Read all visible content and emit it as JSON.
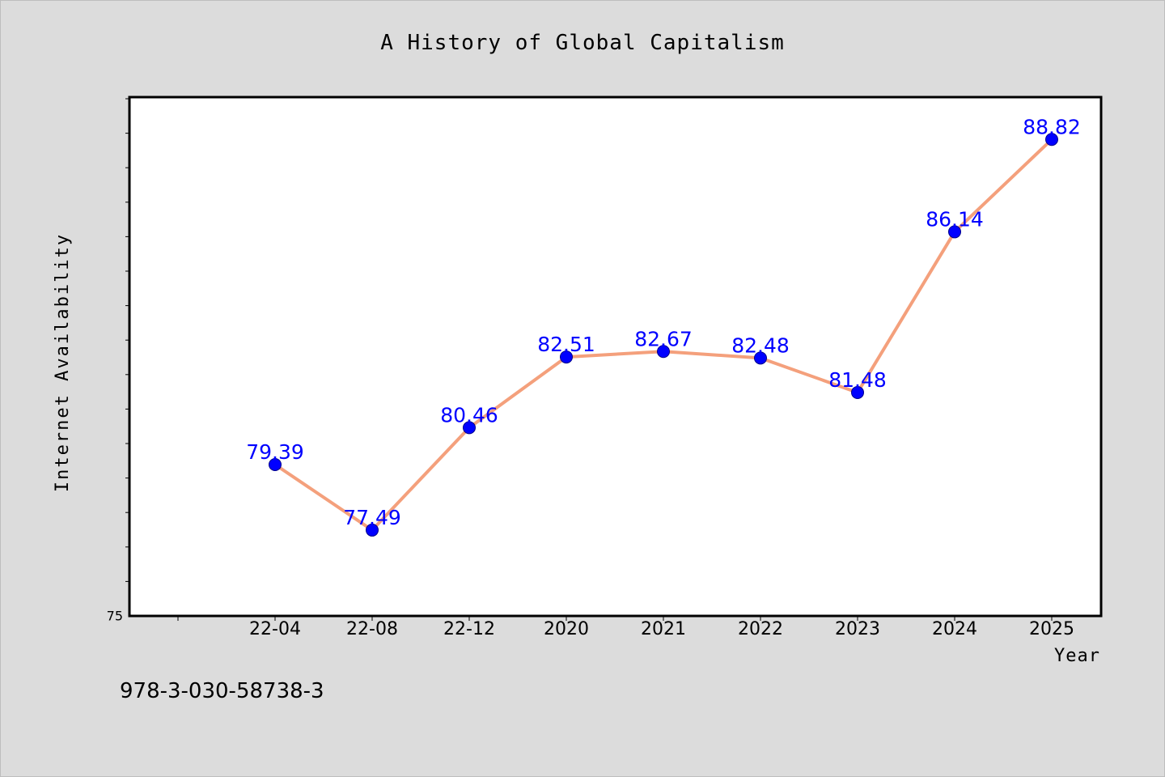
{
  "chart_data": {
    "type": "line",
    "title": "A History of Global Capitalism",
    "xlabel": "Year",
    "ylabel": "Internet Availability",
    "categories": [
      "22-04",
      "22-08",
      "22-12",
      "2020",
      "2021",
      "2022",
      "2023",
      "2024",
      "2025"
    ],
    "series": [
      {
        "values": [
          79.39,
          77.49,
          80.46,
          82.51,
          82.67,
          82.48,
          81.48,
          86.14,
          88.82
        ]
      }
    ],
    "ylim": [
      75,
      90
    ],
    "yticks_labeled": [
      75
    ],
    "grid": false,
    "line_color": "#f4a07c",
    "marker_color": "#0000ff",
    "label_color": "#0000ff",
    "plot_background": "#ffffff",
    "page_background": "#dcdcdc"
  },
  "footer": {
    "isbn": "978-3-030-58738-3"
  }
}
